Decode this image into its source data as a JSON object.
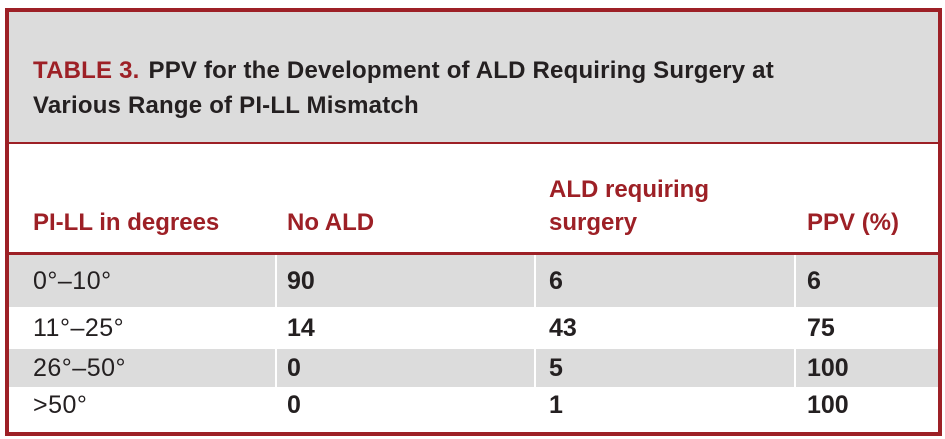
{
  "colors": {
    "maroon": "#9d2026",
    "title-bg": "#dcdcdc",
    "row-alt-bg": "#dcdcdc",
    "text-dark": "#242021"
  },
  "title": {
    "label": "TABLE 3.",
    "line1": "PPV for the Development of ALD Requiring Surgery at",
    "line2": "Various Range of PI-LL Mismatch"
  },
  "columns": {
    "pi_ll": "PI-LL in degrees",
    "no_ald": "No ALD",
    "ald_requiring_surgery": "ALD requiring surgery",
    "ppv": "PPV (%)"
  },
  "rows": [
    {
      "pi_ll": "0°–10°",
      "no_ald": "90",
      "ald_requiring_surgery": "6",
      "ppv": "6"
    },
    {
      "pi_ll": "11°–25°",
      "no_ald": "14",
      "ald_requiring_surgery": "43",
      "ppv": "75"
    },
    {
      "pi_ll": "26°–50°",
      "no_ald": "0",
      "ald_requiring_surgery": "5",
      "ppv": "100"
    },
    {
      "pi_ll": ">50°",
      "no_ald": "0",
      "ald_requiring_surgery": "1",
      "ppv": "100"
    }
  ]
}
